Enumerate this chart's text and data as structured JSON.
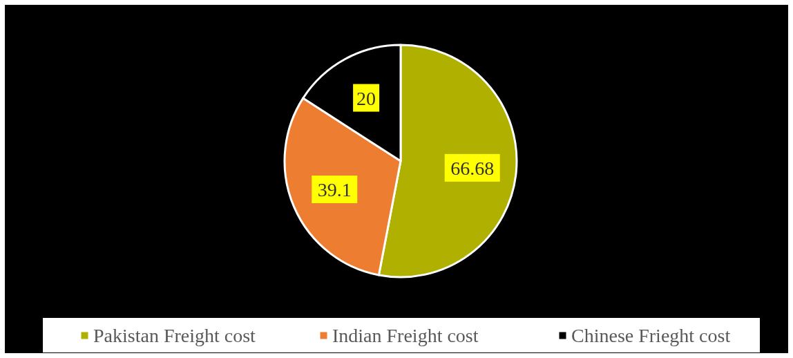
{
  "chart_data": {
    "type": "pie",
    "categories": [
      "Pakistan Freight cost",
      "Indian Freight cost",
      "Chinese Frieght cost"
    ],
    "values": [
      66.68,
      39.1,
      20
    ],
    "colors": [
      "#b0b000",
      "#ed7d31",
      "#000000"
    ],
    "data_labels": true,
    "legend": "bottom"
  }
}
